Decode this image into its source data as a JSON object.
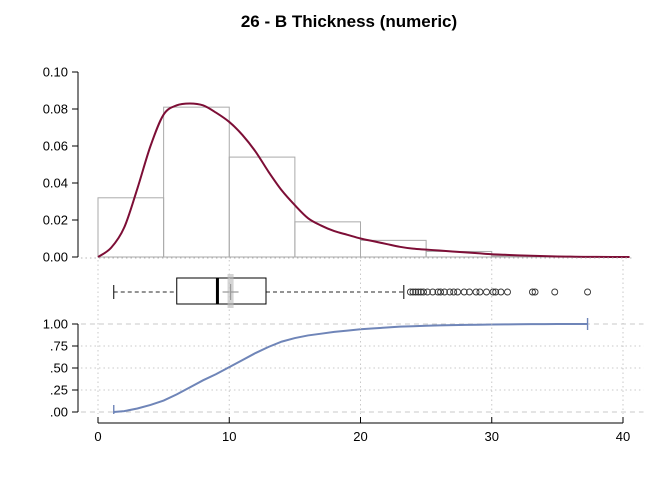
{
  "chart_data": {
    "type": "histogram-density-boxplot-ecdf",
    "title": "26 - B Thickness (numeric)",
    "x_ticks": [
      0,
      10,
      20,
      30,
      40
    ],
    "xlim": [
      -1.3,
      40.8
    ],
    "histogram": {
      "ylim": [
        0,
        0.1
      ],
      "y_ticks": [
        "0.00",
        "0.02",
        "0.04",
        "0.06",
        "0.08",
        "0.10"
      ],
      "bins": [
        {
          "from": 0,
          "to": 5,
          "density": 0.032
        },
        {
          "from": 5,
          "to": 10,
          "density": 0.081
        },
        {
          "from": 10,
          "to": 15,
          "density": 0.054
        },
        {
          "from": 15,
          "to": 20,
          "density": 0.019
        },
        {
          "from": 20,
          "to": 25,
          "density": 0.009
        },
        {
          "from": 25,
          "to": 30,
          "density": 0.003
        },
        {
          "from": 30,
          "to": 35,
          "density": 0.0005
        }
      ],
      "bin_color": "#aaaaaa"
    },
    "density": {
      "color": "#7d0e36",
      "points": [
        [
          0,
          0
        ],
        [
          1,
          0.005
        ],
        [
          2,
          0.016
        ],
        [
          3,
          0.037
        ],
        [
          4,
          0.06
        ],
        [
          5,
          0.077
        ],
        [
          6,
          0.082
        ],
        [
          7,
          0.083
        ],
        [
          8,
          0.082
        ],
        [
          9,
          0.078
        ],
        [
          10,
          0.073
        ],
        [
          11,
          0.066
        ],
        [
          12,
          0.057
        ],
        [
          13,
          0.046
        ],
        [
          14,
          0.036
        ],
        [
          15,
          0.028
        ],
        [
          16,
          0.021
        ],
        [
          17,
          0.017
        ],
        [
          18,
          0.014
        ],
        [
          19,
          0.012
        ],
        [
          20,
          0.01
        ],
        [
          21,
          0.0085
        ],
        [
          22,
          0.007
        ],
        [
          23,
          0.0055
        ],
        [
          24,
          0.0045
        ],
        [
          25,
          0.004
        ],
        [
          26,
          0.0035
        ],
        [
          27,
          0.003
        ],
        [
          28,
          0.0025
        ],
        [
          29,
          0.002
        ],
        [
          30,
          0.0015
        ],
        [
          31,
          0.0012
        ],
        [
          32,
          0.0009
        ],
        [
          33,
          0.0007
        ],
        [
          34,
          0.0005
        ],
        [
          35,
          0.0003
        ],
        [
          36,
          0.0002
        ],
        [
          37,
          0.0001
        ],
        [
          38,
          5e-05
        ],
        [
          40.5,
          0
        ]
      ]
    },
    "boxplot": {
      "whisker_low": 1.2,
      "q1": 6.0,
      "median": 9.1,
      "q3": 12.8,
      "whisker_high": 23.3,
      "mean": 10.1,
      "outliers": [
        23.8,
        24.0,
        24.2,
        24.4,
        24.6,
        24.8,
        25.1,
        25.5,
        25.9,
        26.1,
        26.4,
        26.8,
        27.1,
        27.4,
        27.9,
        28.3,
        28.8,
        29.1,
        29.6,
        30.1,
        30.3,
        30.7,
        31.2,
        33.1,
        33.3,
        34.8,
        37.3
      ]
    },
    "ecdf": {
      "color": "#6f85b8",
      "y_ticks": [
        "1.00",
        ".75",
        ".50",
        ".25",
        ".00"
      ],
      "y_tick_values": [
        1.0,
        0.75,
        0.5,
        0.25,
        0.0
      ],
      "points": [
        [
          1.2,
          0
        ],
        [
          2,
          0.01
        ],
        [
          3,
          0.04
        ],
        [
          4,
          0.08
        ],
        [
          5,
          0.13
        ],
        [
          6,
          0.2
        ],
        [
          7,
          0.28
        ],
        [
          8,
          0.36
        ],
        [
          9,
          0.43
        ],
        [
          10,
          0.51
        ],
        [
          11,
          0.59
        ],
        [
          12,
          0.67
        ],
        [
          13,
          0.74
        ],
        [
          14,
          0.8
        ],
        [
          15,
          0.84
        ],
        [
          16,
          0.87
        ],
        [
          17,
          0.89
        ],
        [
          18,
          0.91
        ],
        [
          19,
          0.925
        ],
        [
          20,
          0.94
        ],
        [
          21,
          0.95
        ],
        [
          22,
          0.96
        ],
        [
          23,
          0.97
        ],
        [
          24,
          0.975
        ],
        [
          25,
          0.98
        ],
        [
          26,
          0.984
        ],
        [
          27,
          0.987
        ],
        [
          28,
          0.99
        ],
        [
          29,
          0.992
        ],
        [
          30,
          0.994
        ],
        [
          31,
          0.996
        ],
        [
          32,
          0.997
        ],
        [
          33,
          0.998
        ],
        [
          34,
          0.999
        ],
        [
          35,
          0.9995
        ],
        [
          37.3,
          1
        ]
      ]
    }
  }
}
